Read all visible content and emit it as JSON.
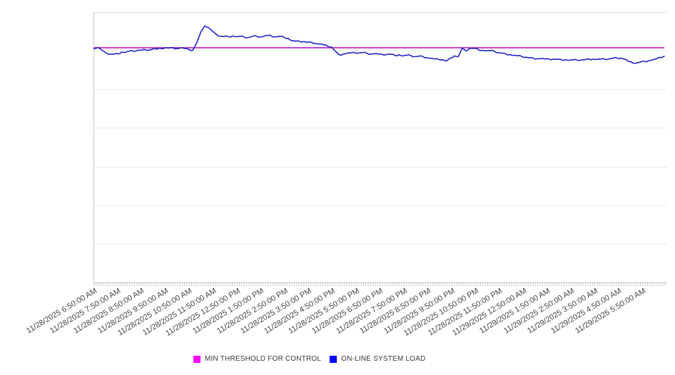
{
  "chart_data": {
    "type": "line",
    "title": "",
    "x_axis": {
      "tick_labels": [
        "11/28/2025 6:50:00 AM",
        "11/28/2025 7:50:00 AM",
        "11/28/2025 8:50:00 AM",
        "11/28/2025 9:50:00 AM",
        "11/28/2025 10:50:00 AM",
        "11/28/2025 11:50:00 AM",
        "11/28/2025 12:50:00 PM",
        "11/28/2025 1:50:00 PM",
        "11/28/2025 2:50:00 PM",
        "11/28/2025 3:50:00 PM",
        "11/28/2025 4:50:00 PM",
        "11/28/2025 5:50:00 PM",
        "11/28/2025 6:50:00 PM",
        "11/28/2025 7:50:00 PM",
        "11/28/2025 8:50:00 PM",
        "11/28/2025 9:50:00 PM",
        "11/28/2025 10:50:00 PM",
        "11/28/2025 11:50:00 PM",
        "11/29/2025 12:50:00 AM",
        "11/29/2025 1:50:00 AM",
        "11/29/2025 2:50:00 AM",
        "11/29/2025 3:50:00 AM",
        "11/29/2025 4:50:00 AM",
        "11/29/2025 5:50:00 AM"
      ],
      "label_interval": "1 hour",
      "minor_ticks": true
    },
    "y_axis": {
      "labels_visible": false,
      "scale_note": "unlabeled axis, values estimated on relative 0-100 scale",
      "ylim": [
        0,
        100
      ],
      "gridlines": 8
    },
    "x_start": "11/28/2025 6:50:00 AM",
    "x_interval_minutes": 10,
    "series": [
      {
        "name": "MIN THRESHOLD FOR CONTROL",
        "type": "threshold-line",
        "value": 86.8,
        "line_color": "#c42ac4",
        "swatch_color": "#ff00ff"
      },
      {
        "name": "ON-LINE SYSTEM LOAD",
        "type": "line",
        "line_color": "#2424c8",
        "swatch_color": "#0000ff",
        "values": [
          86.5,
          86.9,
          86.0,
          85.0,
          84.4,
          84.4,
          84.6,
          85.2,
          85.1,
          85.6,
          85.5,
          85.9,
          85.9,
          86.1,
          86.0,
          86.4,
          86.3,
          86.5,
          86.8,
          86.7,
          86.8,
          86.5,
          86.8,
          86.5,
          86.1,
          85.9,
          88.7,
          92.6,
          94.9,
          94.2,
          92.9,
          91.7,
          91.0,
          91.0,
          90.9,
          91.2,
          90.9,
          91.0,
          90.7,
          90.6,
          91.0,
          91.2,
          90.8,
          91.1,
          91.4,
          91.0,
          90.9,
          91.0,
          90.7,
          90.3,
          89.4,
          89.2,
          89.1,
          89.1,
          88.8,
          88.8,
          88.4,
          88.2,
          87.9,
          87.4,
          87.1,
          85.5,
          84.2,
          84.5,
          84.8,
          84.9,
          84.9,
          84.9,
          85.1,
          84.7,
          84.5,
          84.7,
          84.4,
          84.2,
          84.4,
          84.4,
          84.0,
          84.2,
          83.8,
          84.0,
          83.9,
          83.5,
          83.7,
          83.6,
          83.2,
          82.9,
          82.6,
          82.5,
          82.4,
          81.9,
          83.0,
          83.8,
          83.5,
          86.7,
          85.6,
          86.6,
          86.6,
          86.2,
          85.9,
          85.7,
          85.7,
          85.6,
          85.0,
          84.8,
          84.5,
          84.3,
          84.0,
          83.8,
          83.6,
          83.3,
          83.1,
          82.9,
          82.8,
          82.8,
          82.6,
          82.5,
          82.6,
          82.5,
          82.4,
          82.4,
          82.2,
          82.3,
          82.2,
          82.3,
          82.4,
          82.6,
          82.6,
          82.5,
          82.6,
          82.5,
          82.7,
          82.9,
          83.1,
          83.0,
          82.6,
          81.7,
          81.2,
          81.2,
          81.5,
          81.8,
          82.0,
          82.3,
          82.7,
          83.2,
          83.7
        ]
      }
    ],
    "legend_position": "bottom-center"
  },
  "colors": {
    "background": "#ffffff",
    "gridline": "#ececec",
    "top_border": "#dedede",
    "axis": "#c9c9c9",
    "minor_tick": "#cccccc",
    "x_label_text": "#444444",
    "legend_text": "#3a3a3a"
  }
}
